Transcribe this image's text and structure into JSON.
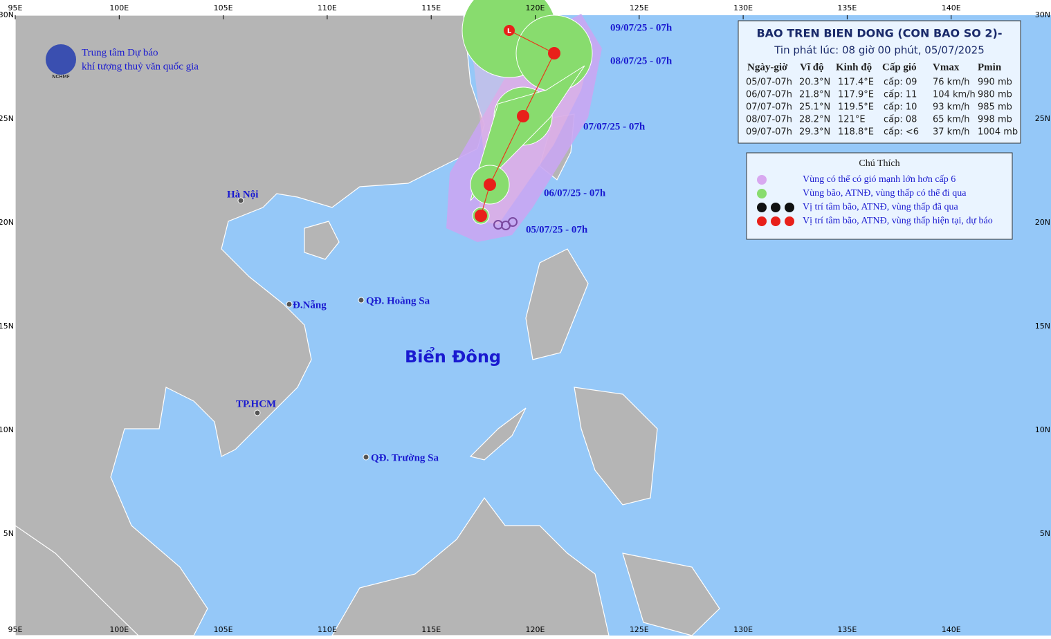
{
  "logo": {
    "line1": "Trung tâm Dự báo",
    "line2": "khí tượng thuỷ văn quốc gia",
    "badge": "NCHMF"
  },
  "axes": {
    "lon": [
      "95E",
      "100E",
      "105E",
      "110E",
      "115E",
      "120E",
      "125E",
      "130E",
      "135E",
      "140E"
    ],
    "lat": [
      "30N",
      "25N",
      "20N",
      "15N",
      "10N",
      "5N"
    ]
  },
  "places": [
    "Hà Nội",
    "Đ.Nẵng",
    "QĐ. Hoàng Sa",
    "TP.HCM",
    "QĐ. Trường Sa"
  ],
  "sea_label": "Biển Đông",
  "track_labels": [
    "09/07/25 - 07h",
    "08/07/25 - 07h",
    "07/07/25 - 07h",
    "06/07/25 - 07h",
    "05/07/25 - 07h"
  ],
  "bulletin": {
    "title": "BAO TREN BIEN DONG (CON BAO SO 2)-",
    "issued": "Tin phát lúc: 08 giờ 00 phút, 05/07/2025",
    "columns": [
      "Ngày-giờ",
      "Vĩ độ",
      "Kinh độ",
      "Cấp gió",
      "Vmax",
      "Pmin"
    ],
    "rows": [
      [
        "05/07-07h",
        "20.3°N",
        "117.4°E",
        "cấp: 09",
        "76 km/h",
        "990 mb"
      ],
      [
        "06/07-07h",
        "21.8°N",
        "117.9°E",
        "cấp: 11",
        "104 km/h",
        "980 mb"
      ],
      [
        "07/07-07h",
        "25.1°N",
        "119.5°E",
        "cấp: 10",
        "93 km/h",
        "985 mb"
      ],
      [
        "08/07-07h",
        "28.2°N",
        "121°E",
        "cấp: 08",
        "65 km/h",
        "998 mb"
      ],
      [
        "09/07-07h",
        "29.3°N",
        "118.8°E",
        "cấp: <6",
        "37 km/h",
        "1004 mb"
      ]
    ]
  },
  "legend": {
    "title": "Chú Thích",
    "items": [
      "Vùng có thể có gió mạnh lớn hơn cấp 6",
      "Vùng bão, ATNĐ, vùng thấp có thể đi qua",
      "Vị trí tâm bão, ATNĐ, vùng thấp đã qua",
      "Vị trí tâm bão, ATNĐ, vùng thấp hiện tại, dự báo"
    ]
  }
}
